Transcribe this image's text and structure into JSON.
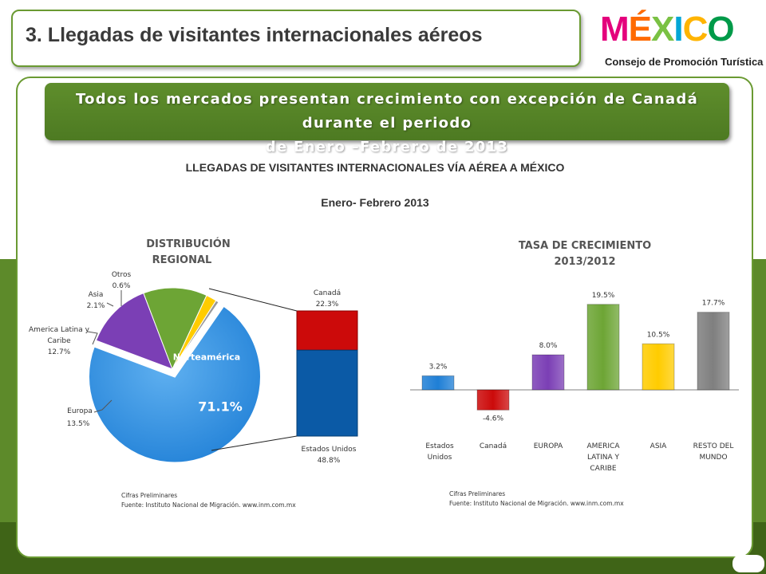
{
  "header": {
    "title": "3. Llegadas de visitantes internacionales aéreos",
    "logo_text": "MÉXICO",
    "logo_subtitle": "Consejo de Promoción Turística"
  },
  "banner": {
    "line1": "Todos los mercados presentan crecimiento con excepción de Canadá durante el periodo",
    "line2": "de Enero –Febrero de 2013"
  },
  "main_title": "LLEGADAS DE VISITANTES INTERNACIONALES VÍA AÉREA A MÉXICO",
  "main_subtitle": "Enero- Febrero  2013",
  "colors": {
    "blue": "#1f7fd6",
    "red": "#cc0a0a",
    "purple": "#7b3fb5",
    "green": "#6da535",
    "yellow": "#ffcc00",
    "gray": "#7f7f7f",
    "dark_blue": "#0b5aa6",
    "brand_green": "#5d8a2a"
  },
  "chart_data": [
    {
      "type": "pie",
      "title": "DISTRIBUCIÓN REGIONAL",
      "center_label": "Norteamérica",
      "center_value": "71.1%",
      "slices": [
        {
          "label": "Norteamérica",
          "value": 71.1,
          "display": "71.1%",
          "color": "#1f7fd6"
        },
        {
          "label": "Europa",
          "value": 13.5,
          "display": "13.5%",
          "color": "#7b3fb5"
        },
        {
          "label": "America Latina y Caribe",
          "value": 12.7,
          "display": "12.7%",
          "color": "#6da535"
        },
        {
          "label": "Asia",
          "value": 2.1,
          "display": "2.1%",
          "color": "#ffcc00"
        },
        {
          "label": "Otros",
          "value": 0.6,
          "display": "0.6%",
          "color": "#9a9a9a"
        }
      ],
      "breakdown": [
        {
          "label": "Canadá",
          "value": 22.3,
          "display": "22.3%",
          "color": "#cc0a0a"
        },
        {
          "label": "Estados Unidos",
          "value": 48.8,
          "display": "48.8%",
          "color": "#0b5aa6"
        }
      ],
      "note_line1": "Cifras Preliminares",
      "note_line2": "Fuente: Instituto Nacional de Migración.  www.inm.com.mx"
    },
    {
      "type": "bar",
      "title": "TASA DE CRECIMIENTO 2013/2012",
      "categories": [
        "Estados Unidos",
        "Canadá",
        "EUROPA",
        "AMERICA LATINA Y CARIBE",
        "ASIA",
        "RESTO DEL MUNDO"
      ],
      "category_lines": [
        [
          "Estados",
          "Unidos"
        ],
        [
          "Canadá"
        ],
        [
          "EUROPA"
        ],
        [
          "AMERICA",
          "LATINA Y",
          "CARIBE"
        ],
        [
          "ASIA"
        ],
        [
          "RESTO DEL",
          "MUNDO"
        ]
      ],
      "values": [
        3.2,
        -4.6,
        8.0,
        19.5,
        10.5,
        17.7
      ],
      "value_labels": [
        "3.2%",
        "-4.6%",
        "8.0%",
        "19.5%",
        "10.5%",
        "17.7%"
      ],
      "colors": [
        "#1f7fd6",
        "#cc0a0a",
        "#7b3fb5",
        "#6da535",
        "#ffcc00",
        "#7f7f7f"
      ],
      "grid": false,
      "note_line1": "Cifras Preliminares",
      "note_line2": "Fuente: Instituto Nacional de Migración.  www.inm.com.mx"
    }
  ]
}
